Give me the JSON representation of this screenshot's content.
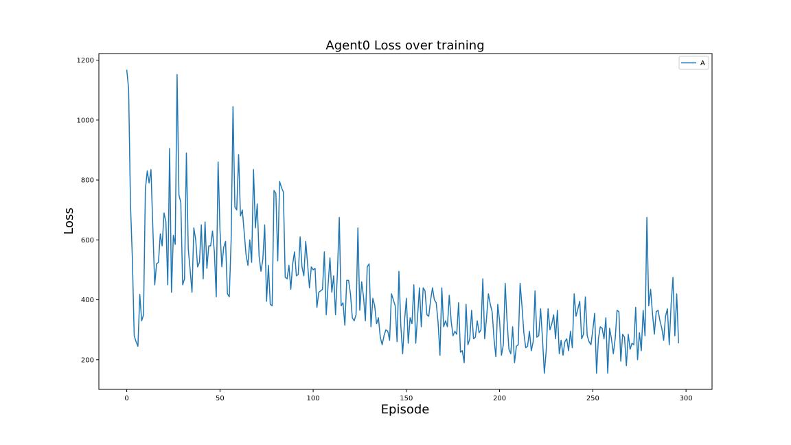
{
  "chart_data": {
    "type": "line",
    "title": "Agent0 Loss over training",
    "xlabel": "Episode",
    "ylabel": "Loss",
    "xlim": [
      -14.95,
      313.95
    ],
    "ylim": [
      101,
      1222
    ],
    "x_ticks": [
      0,
      50,
      100,
      150,
      200,
      250,
      300
    ],
    "y_ticks": [
      200,
      400,
      600,
      800,
      1000,
      1200
    ],
    "grid": false,
    "legend_position": "top-right",
    "series": [
      {
        "name": "A",
        "color": "#1f77b4",
        "x_start": 0,
        "x_step": 1,
        "values": [
          1168,
          1105,
          720,
          540,
          280,
          260,
          245,
          418,
          330,
          350,
          770,
          830,
          790,
          835,
          640,
          450,
          520,
          525,
          620,
          580,
          690,
          660,
          450,
          905,
          425,
          615,
          585,
          1152,
          750,
          725,
          450,
          470,
          890,
          570,
          500,
          425,
          640,
          600,
          510,
          525,
          650,
          470,
          660,
          505,
          580,
          580,
          630,
          560,
          410,
          860,
          635,
          510,
          575,
          595,
          420,
          410,
          600,
          1045,
          710,
          700,
          885,
          680,
          700,
          625,
          550,
          515,
          600,
          525,
          835,
          640,
          720,
          545,
          495,
          535,
          650,
          395,
          515,
          385,
          380,
          765,
          755,
          530,
          795,
          775,
          760,
          475,
          470,
          515,
          435,
          520,
          560,
          480,
          485,
          610,
          510,
          480,
          595,
          520,
          440,
          510,
          500,
          505,
          375,
          425,
          430,
          435,
          560,
          350,
          450,
          540,
          425,
          480,
          350,
          490,
          675,
          380,
          390,
          315,
          465,
          465,
          420,
          340,
          330,
          350,
          640,
          365,
          460,
          410,
          330,
          510,
          520,
          310,
          405,
          380,
          320,
          340,
          275,
          250,
          280,
          300,
          295,
          265,
          420,
          400,
          380,
          260,
          495,
          315,
          220,
          330,
          405,
          255,
          340,
          320,
          450,
          255,
          345,
          440,
          310,
          440,
          430,
          350,
          345,
          400,
          440,
          400,
          390,
          325,
          215,
          440,
          310,
          330,
          310,
          415,
          330,
          280,
          295,
          285,
          390,
          225,
          230,
          190,
          385,
          250,
          270,
          365,
          270,
          275,
          330,
          290,
          300,
          470,
          270,
          340,
          420,
          385,
          360,
          270,
          210,
          385,
          330,
          215,
          250,
          455,
          330,
          235,
          220,
          310,
          190,
          245,
          250,
          455,
          380,
          290,
          240,
          245,
          295,
          230,
          260,
          430,
          275,
          280,
          370,
          270,
          155,
          230,
          370,
          300,
          320,
          350,
          270,
          365,
          220,
          265,
          215,
          260,
          270,
          230,
          295,
          240,
          420,
          345,
          370,
          395,
          270,
          285,
          410,
          280,
          260,
          250,
          300,
          355,
          155,
          270,
          310,
          305,
          270,
          340,
          155,
          305,
          270,
          220,
          270,
          365,
          360,
          195,
          285,
          275,
          180,
          285,
          235,
          255,
          250,
          375,
          200,
          290,
          230,
          365,
          280,
          675,
          380,
          435,
          355,
          285,
          360,
          365,
          330,
          305,
          265,
          345,
          370,
          250,
          385,
          475,
          280,
          420,
          255
        ]
      }
    ]
  }
}
